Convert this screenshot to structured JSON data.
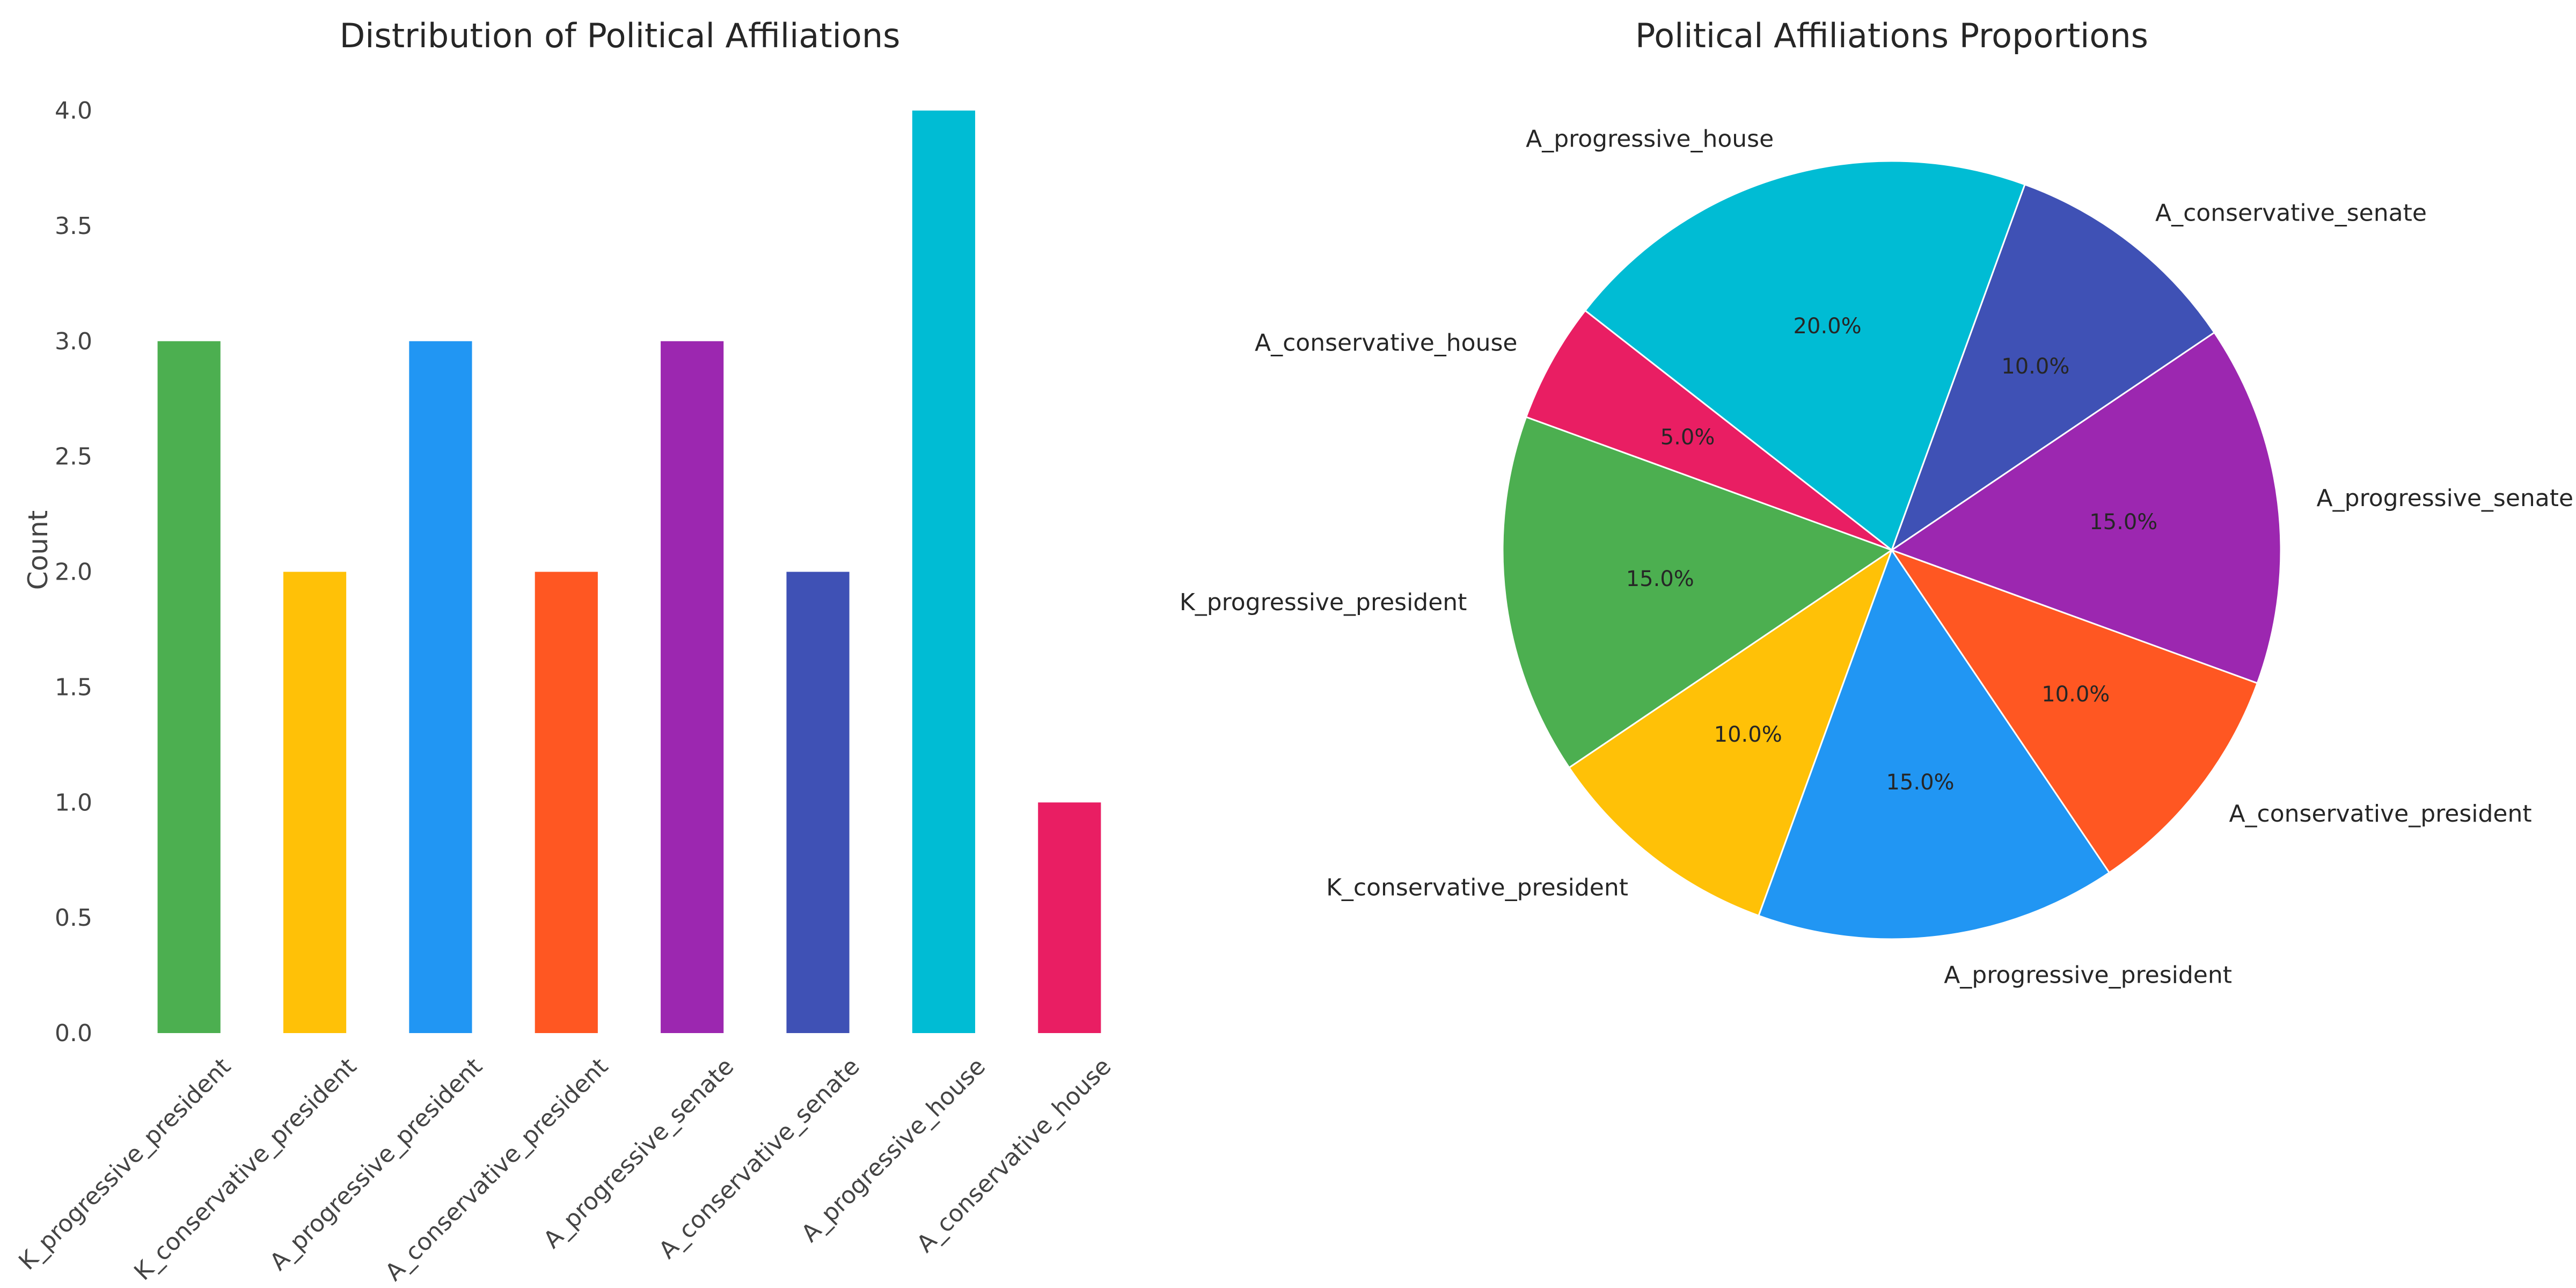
{
  "chart_data": [
    {
      "type": "bar",
      "title": "Distribution of Political Affiliations",
      "xlabel": "",
      "ylabel": "Count",
      "ylim": [
        0,
        4.0
      ],
      "yticks": [
        "0.0",
        "0.5",
        "1.0",
        "1.5",
        "2.0",
        "2.5",
        "3.0",
        "3.5",
        "4.0"
      ],
      "grid": false,
      "categories": [
        "K_progressive_president",
        "K_conservative_president",
        "A_progressive_president",
        "A_conservative_president",
        "A_progressive_senate",
        "A_conservative_senate",
        "A_progressive_house",
        "A_conservative_house"
      ],
      "values": [
        3,
        2,
        3,
        2,
        3,
        2,
        4,
        1
      ],
      "colors": [
        "#4CAF50",
        "#FFC107",
        "#2196F3",
        "#FF5722",
        "#9C27B0",
        "#3F51B5",
        "#00BCD4",
        "#E91E63"
      ]
    },
    {
      "type": "pie",
      "title": "Political Affiliations Proportions",
      "categories": [
        "K_progressive_president",
        "K_conservative_president",
        "A_progressive_president",
        "A_conservative_president",
        "A_progressive_senate",
        "A_conservative_senate",
        "A_progressive_house",
        "A_conservative_house"
      ],
      "values": [
        15.0,
        10.0,
        15.0,
        10.0,
        15.0,
        10.0,
        20.0,
        5.0
      ],
      "value_labels": [
        "15.0%",
        "10.0%",
        "15.0%",
        "10.0%",
        "15.0%",
        "10.0%",
        "20.0%",
        "5.0%"
      ],
      "colors": [
        "#4CAF50",
        "#FFC107",
        "#2196F3",
        "#FF5722",
        "#9C27B0",
        "#3F51B5",
        "#00BCD4",
        "#E91E63"
      ],
      "start_angle_deg": 160,
      "direction": "counterclockwise"
    }
  ]
}
